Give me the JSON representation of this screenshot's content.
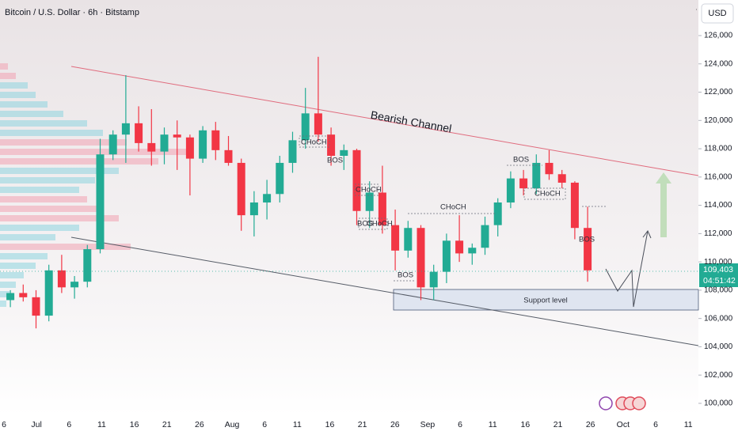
{
  "chart_data": {
    "type": "candlestick",
    "title": "Bitcoin / U.S. Dollar · 6h · Bitstamp",
    "currency": "USD",
    "categories": [
      "6",
      "Jul",
      "6",
      "11",
      "16",
      "21",
      "26",
      "Aug",
      "6",
      "11",
      "16",
      "21",
      "26",
      "Sep",
      "6",
      "11",
      "16",
      "21",
      "26",
      "Oct",
      "6",
      "11"
    ],
    "ylim": [
      99160,
      128515
    ],
    "yticks": [
      {
        "value": 100000,
        "label": "100,000"
      },
      {
        "value": 102000,
        "label": "102,000"
      },
      {
        "value": 104000,
        "label": "104,000"
      },
      {
        "value": 106000,
        "label": "106,000"
      },
      {
        "value": 108000,
        "label": "108,000"
      },
      {
        "value": 110000,
        "label": "110,000"
      },
      {
        "value": 112000,
        "label": "112,000"
      },
      {
        "value": 114000,
        "label": "114,000"
      },
      {
        "value": 116000,
        "label": "116,000"
      },
      {
        "value": 118000,
        "label": "118,000"
      },
      {
        "value": 120000,
        "label": "120,000"
      },
      {
        "value": 122000,
        "label": "122,000"
      },
      {
        "value": 124000,
        "label": "124,000"
      },
      {
        "value": 126000,
        "label": "126,000"
      }
    ],
    "up_color": "#22ab94",
    "down_color": "#f23645",
    "open": [
      107300,
      107800,
      107500,
      106200,
      109400,
      108200,
      108600,
      110900,
      117600,
      119000,
      119800,
      118400,
      117800,
      119000,
      118800,
      117300,
      119300,
      117900,
      117000,
      113300,
      114200,
      114800,
      117000,
      118600,
      120500,
      119000,
      117500,
      117900,
      113600,
      114900,
      112600,
      110800,
      112400,
      108200,
      109300,
      111500,
      110600,
      111000,
      112600,
      114200,
      115900,
      115200,
      117000,
      116200,
      115600,
      112400
    ],
    "high": [
      108000,
      108400,
      108000,
      109800,
      110500,
      109000,
      111200,
      118700,
      119300,
      123200,
      121000,
      120800,
      119500,
      120000,
      119000,
      119600,
      119900,
      118900,
      117300,
      115000,
      115800,
      117500,
      119200,
      122300,
      124500,
      119500,
      118300,
      118000,
      115700,
      116800,
      113700,
      112900,
      112600,
      109800,
      112000,
      113300,
      111300,
      113200,
      114500,
      116400,
      116500,
      117600,
      117900,
      116500,
      115700,
      113900
    ],
    "low": [
      106800,
      107200,
      105300,
      105800,
      107800,
      107400,
      108200,
      110600,
      117200,
      117000,
      117800,
      116800,
      116900,
      116500,
      114700,
      117000,
      117200,
      116800,
      112200,
      111800,
      113000,
      114200,
      116300,
      118000,
      118500,
      116800,
      116500,
      112600,
      112400,
      112000,
      109400,
      110300,
      107300,
      107300,
      108500,
      110000,
      109800,
      110500,
      111800,
      113800,
      114700,
      114800,
      115800,
      115200,
      111600,
      108600
    ],
    "close": [
      107800,
      107500,
      106200,
      109400,
      108200,
      108600,
      110900,
      117600,
      119000,
      119800,
      118400,
      117800,
      119000,
      118800,
      117300,
      119300,
      117900,
      117000,
      113300,
      114200,
      114800,
      117000,
      118600,
      120500,
      119000,
      117500,
      117900,
      113600,
      114900,
      112600,
      110800,
      112400,
      108200,
      109300,
      111500,
      110600,
      111000,
      112600,
      114200,
      115900,
      115200,
      117000,
      116200,
      115600,
      112400,
      109403
    ],
    "last_price": {
      "value": 109403,
      "label": "109,403"
    },
    "countdown": "04:51:42",
    "annotations": [
      "Bearish Channel",
      "Support level",
      "CHoCH",
      "BOS",
      "CHoCH",
      "BOS",
      "CHoCH",
      "BOS",
      "CHoCH",
      "BOS",
      "CHoCH",
      "BOS"
    ]
  }
}
